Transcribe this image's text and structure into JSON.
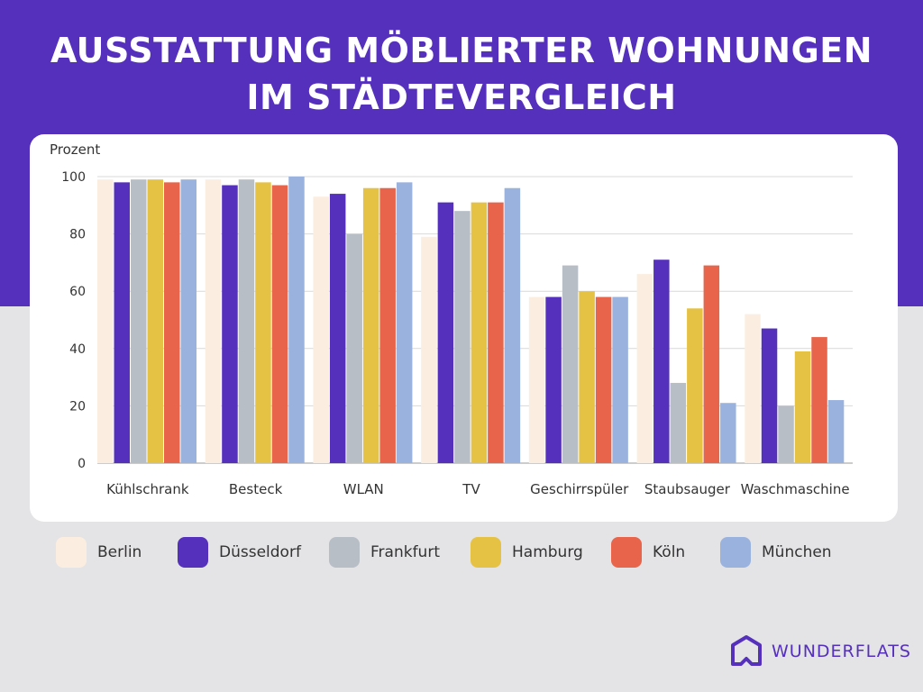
{
  "header": {
    "title_line1": "AUSSTATTUNG MÖBLIERTER WOHNUNGEN",
    "title_line2": "IM STÄDTEVERGLEICH"
  },
  "brand": {
    "name": "WUNDERFLATS",
    "color": "#5530bd"
  },
  "chart_data": {
    "type": "bar",
    "title": "Ausstattung möblierter Wohnungen im Städtevergleich",
    "xlabel": "",
    "ylabel": "Prozent",
    "ylim": [
      0,
      100
    ],
    "yticks": [
      0,
      20,
      40,
      60,
      80,
      100
    ],
    "grid": true,
    "legend_position": "bottom",
    "categories": [
      "Kühlschrank",
      "Besteck",
      "WLAN",
      "TV",
      "Geschirrspüler",
      "Staubsauger",
      "Waschmaschine"
    ],
    "series": [
      {
        "name": "Berlin",
        "color": "#fbeee0",
        "values": [
          99,
          99,
          93,
          79,
          58,
          66,
          52
        ]
      },
      {
        "name": "Düsseldorf",
        "color": "#5530bd",
        "values": [
          98,
          97,
          94,
          91,
          58,
          71,
          47
        ]
      },
      {
        "name": "Frankfurt",
        "color": "#b7bec6",
        "values": [
          99,
          99,
          80,
          88,
          69,
          28,
          20
        ]
      },
      {
        "name": "Hamburg",
        "color": "#e6c244",
        "values": [
          99,
          98,
          96,
          91,
          60,
          54,
          39
        ]
      },
      {
        "name": "Köln",
        "color": "#e8644a",
        "values": [
          98,
          97,
          96,
          91,
          58,
          69,
          44
        ]
      },
      {
        "name": "München",
        "color": "#9ab3de",
        "values": [
          99,
          100,
          98,
          96,
          58,
          21,
          22
        ]
      }
    ]
  }
}
